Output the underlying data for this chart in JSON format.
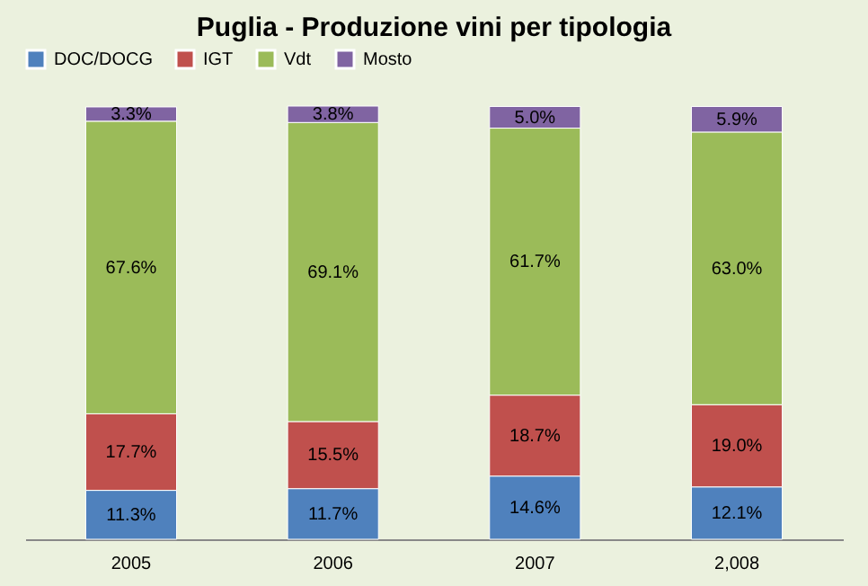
{
  "chart_data": {
    "type": "bar",
    "title": "Puglia - Produzione vini per tipologia",
    "categories": [
      "2005",
      "2006",
      "2007",
      "2,008"
    ],
    "stacked": true,
    "legend": "top",
    "series": [
      {
        "name": "DOC/DOCG",
        "color": "#4f81bd",
        "values": [
          11.3,
          11.7,
          14.6,
          12.1
        ],
        "value_labels": [
          "11.3%",
          "11.7%",
          "14.6%",
          "12.1%"
        ]
      },
      {
        "name": "IGT",
        "color": "#c0504d",
        "values": [
          17.7,
          15.5,
          18.7,
          19.0
        ],
        "value_labels": [
          "17.7%",
          "15.5%",
          "18.7%",
          "19.0%"
        ]
      },
      {
        "name": "Vdt",
        "color": "#9bbb59",
        "values": [
          67.6,
          69.1,
          61.7,
          63.0
        ],
        "value_labels": [
          "67.6%",
          "69.1%",
          "61.7%",
          "63.0%"
        ]
      },
      {
        "name": "Mosto",
        "color": "#8064a2",
        "values": [
          3.3,
          3.8,
          5.0,
          5.9
        ],
        "value_labels": [
          "3.3%",
          "3.8%",
          "5.0%",
          "5.9%"
        ]
      }
    ]
  }
}
